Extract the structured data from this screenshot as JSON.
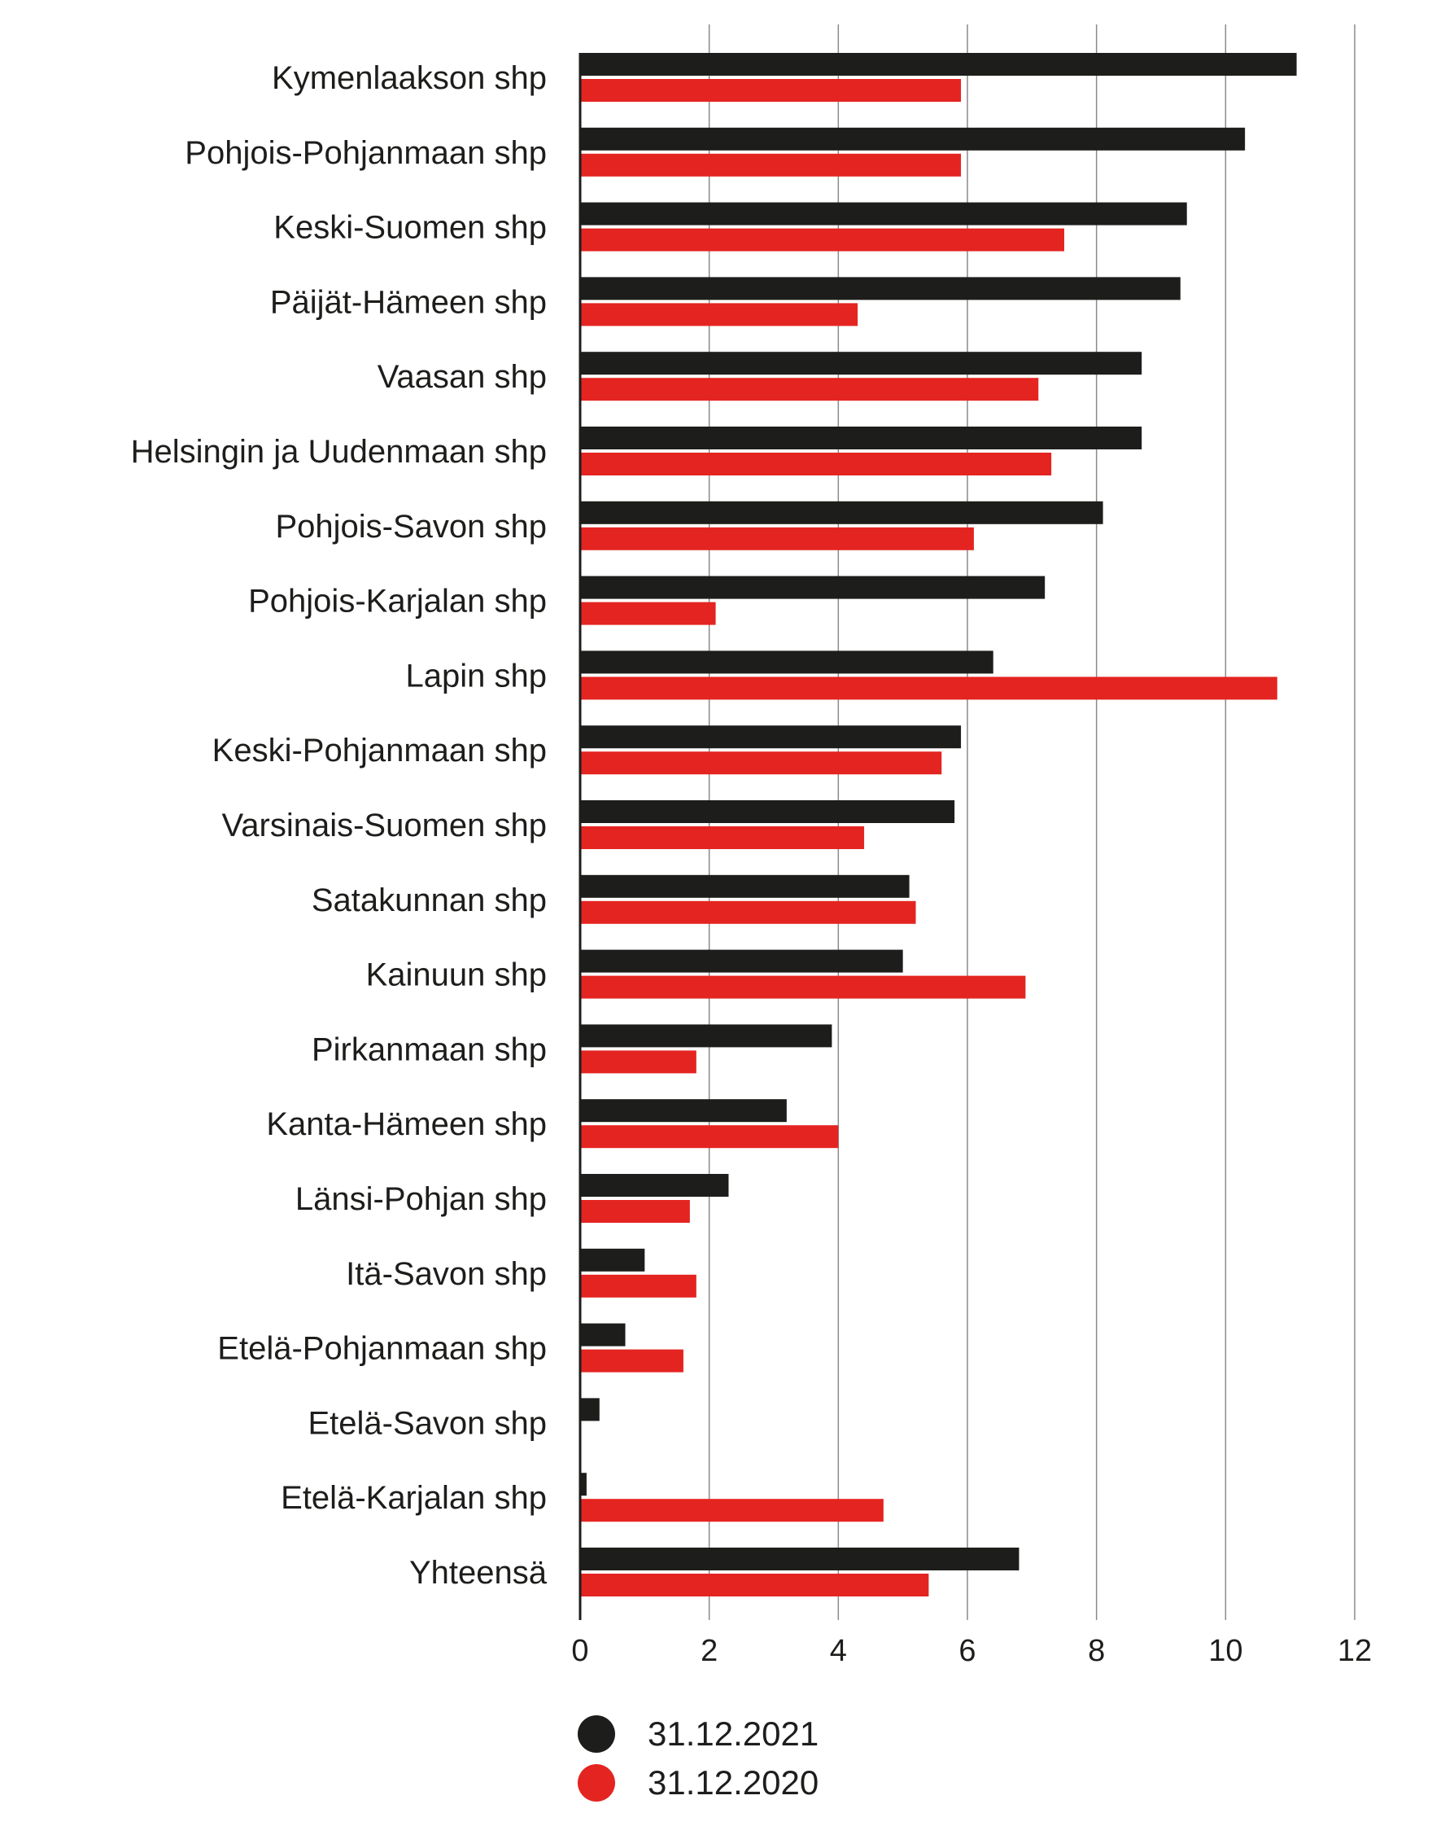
{
  "chart_data": {
    "type": "bar",
    "orientation": "horizontal",
    "categories": [
      "Kymenlaakson shp",
      "Pohjois-Pohjanmaan shp",
      "Keski-Suomen shp",
      "Päijät-Hämeen shp",
      "Vaasan shp",
      "Helsingin ja Uudenmaan shp",
      "Pohjois-Savon shp",
      "Pohjois-Karjalan shp",
      "Lapin shp",
      "Keski-Pohjanmaan shp",
      "Varsinais-Suomen shp",
      "Satakunnan shp",
      "Kainuun shp",
      "Pirkanmaan shp",
      "Kanta-Hämeen shp",
      "Länsi-Pohjan shp",
      "Itä-Savon shp",
      "Etelä-Pohjanmaan shp",
      "Etelä-Savon shp",
      "Etelä-Karjalan shp",
      "Yhteensä"
    ],
    "series": [
      {
        "name": "31.12.2021",
        "color": "#1d1d1b",
        "values": [
          11.1,
          10.3,
          9.4,
          9.3,
          8.7,
          8.7,
          8.1,
          7.2,
          6.4,
          5.9,
          5.8,
          5.1,
          5.0,
          3.9,
          3.2,
          2.3,
          1.0,
          0.7,
          0.3,
          0.1,
          6.8
        ]
      },
      {
        "name": "31.12.2020",
        "color": "#e42421",
        "values": [
          5.9,
          5.9,
          7.5,
          4.3,
          7.1,
          7.3,
          6.1,
          2.1,
          10.8,
          5.6,
          4.4,
          5.2,
          6.9,
          1.8,
          4.0,
          1.7,
          1.8,
          1.6,
          0,
          4.7,
          5.4
        ]
      }
    ],
    "xlim": [
      0,
      12
    ],
    "xticks": [
      "0",
      "2",
      "4",
      "6",
      "8",
      "10",
      "12"
    ],
    "grid": true,
    "legend_position": "bottom-left"
  }
}
